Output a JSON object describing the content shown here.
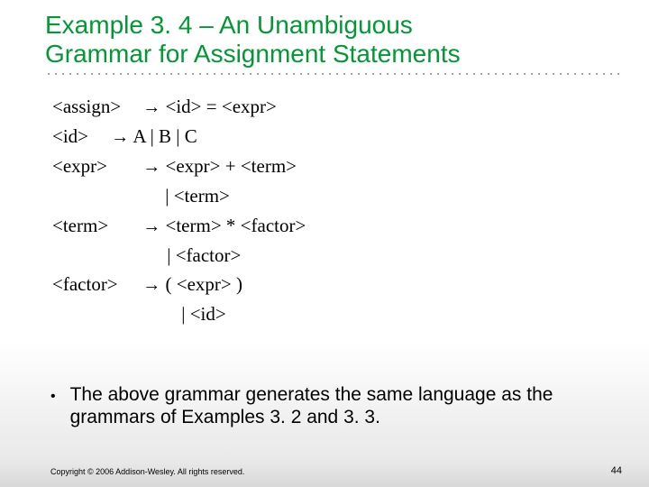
{
  "title_line1": "Example 3. 4 – An Unambiguous",
  "title_line2": "Grammar for Assignment Statements",
  "grammar": {
    "r1_lhs": "<assign>",
    "r1_rhs": "<id>  =  <expr>",
    "r2_lhs": "<id>",
    "r2_rhs": "A |  B |  C",
    "r3_lhs": "<expr>",
    "r3_rhs": "<expr>  +  <term>",
    "r3_alt": "|  <term>",
    "r4_lhs": "<term>",
    "r4_rhs": "<term>  *  <factor>",
    "r4_alt": "|  <factor>",
    "r5_lhs": "<factor>",
    "r5_rhs": "(  <expr>  )",
    "r5_alt": "|  <id>",
    "arrow": "→"
  },
  "bullet_text": "The above grammar generates the same language as the grammars of Examples 3. 2 and 3. 3.",
  "copyright": "Copyright © 2006 Addison-Wesley. All rights reserved.",
  "page_number": "44",
  "colors": {
    "title_color": "#009933",
    "text_color": "#000000",
    "bg_top": "#ffffff",
    "bg_bottom": "#d8d8d8"
  }
}
